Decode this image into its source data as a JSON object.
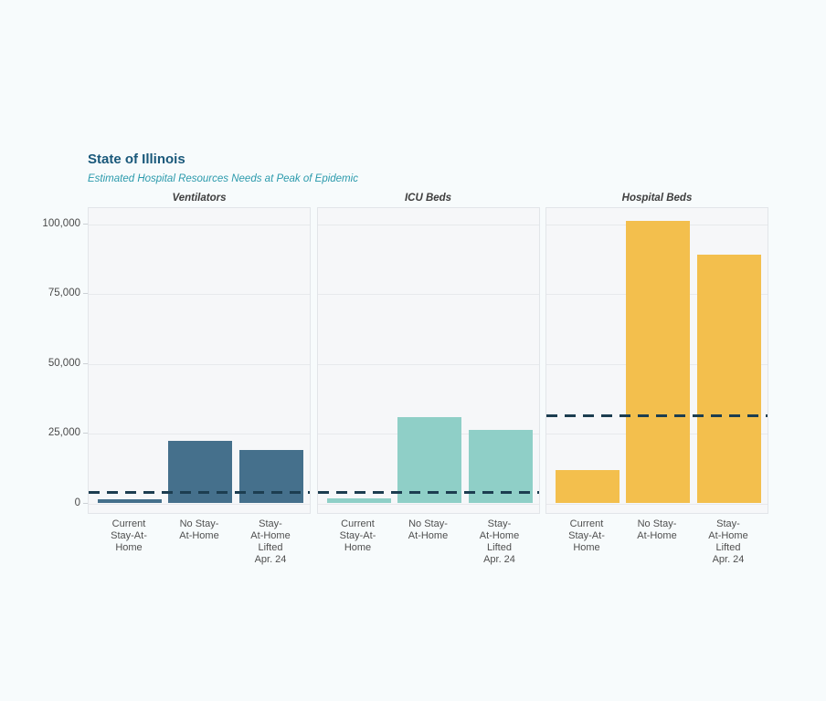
{
  "header": {
    "title": "State of Illinois",
    "subtitle": "Estimated Hospital Resources Needs at Peak of Epidemic"
  },
  "colors": {
    "page_background": "#f7fbfc",
    "panel_background": "#f6f7f9",
    "panel_border": "#e2e5e9",
    "gridline": "#e7e9ec",
    "capacity_line": "#1c3d50",
    "title_text": "#19587a",
    "subtitle_text": "#2b9aac",
    "ventilators_bar": "#45708c",
    "icu_beds_bar": "#8fcfc7",
    "hospital_beds_bar": "#f3bf4d"
  },
  "chart_data": {
    "type": "bar",
    "title": "State of Illinois",
    "subtitle": "Estimated Hospital Resources Needs at Peak of Epidemic",
    "layout_hint": "three faceted panels sharing one y axis, grid on, no legend, dashed horizontal capacity line per panel",
    "categories": [
      "Current Stay-At-Home",
      "No Stay-At-Home",
      "Stay-At-Home Lifted Apr. 24"
    ],
    "category_label_lines": [
      "Current\nStay-At-\nHome",
      "No Stay-\nAt-Home",
      "Stay-\nAt-Home\nLifted\nApr. 24"
    ],
    "facets": [
      {
        "label": "Ventilators",
        "values": [
          1600,
          22300,
          19000
        ],
        "capacity_line": 3800,
        "bar_color": "#45708c"
      },
      {
        "label": "ICU Beds",
        "values": [
          1900,
          30800,
          26200
        ],
        "capacity_line": 3800,
        "bar_color": "#8fcfc7"
      },
      {
        "label": "Hospital Beds",
        "values": [
          12100,
          101300,
          89200
        ],
        "capacity_line": 31500,
        "bar_color": "#f3bf4d"
      }
    ],
    "xlabel": "",
    "ylabel": "",
    "ylim": [
      0,
      106000
    ],
    "y_ticks": [
      {
        "value": 0,
        "label": "0"
      },
      {
        "value": 25000,
        "label": "25,000"
      },
      {
        "value": 50000,
        "label": "50,000"
      },
      {
        "value": 75000,
        "label": "75,000"
      },
      {
        "value": 100000,
        "label": "100,000"
      }
    ]
  }
}
